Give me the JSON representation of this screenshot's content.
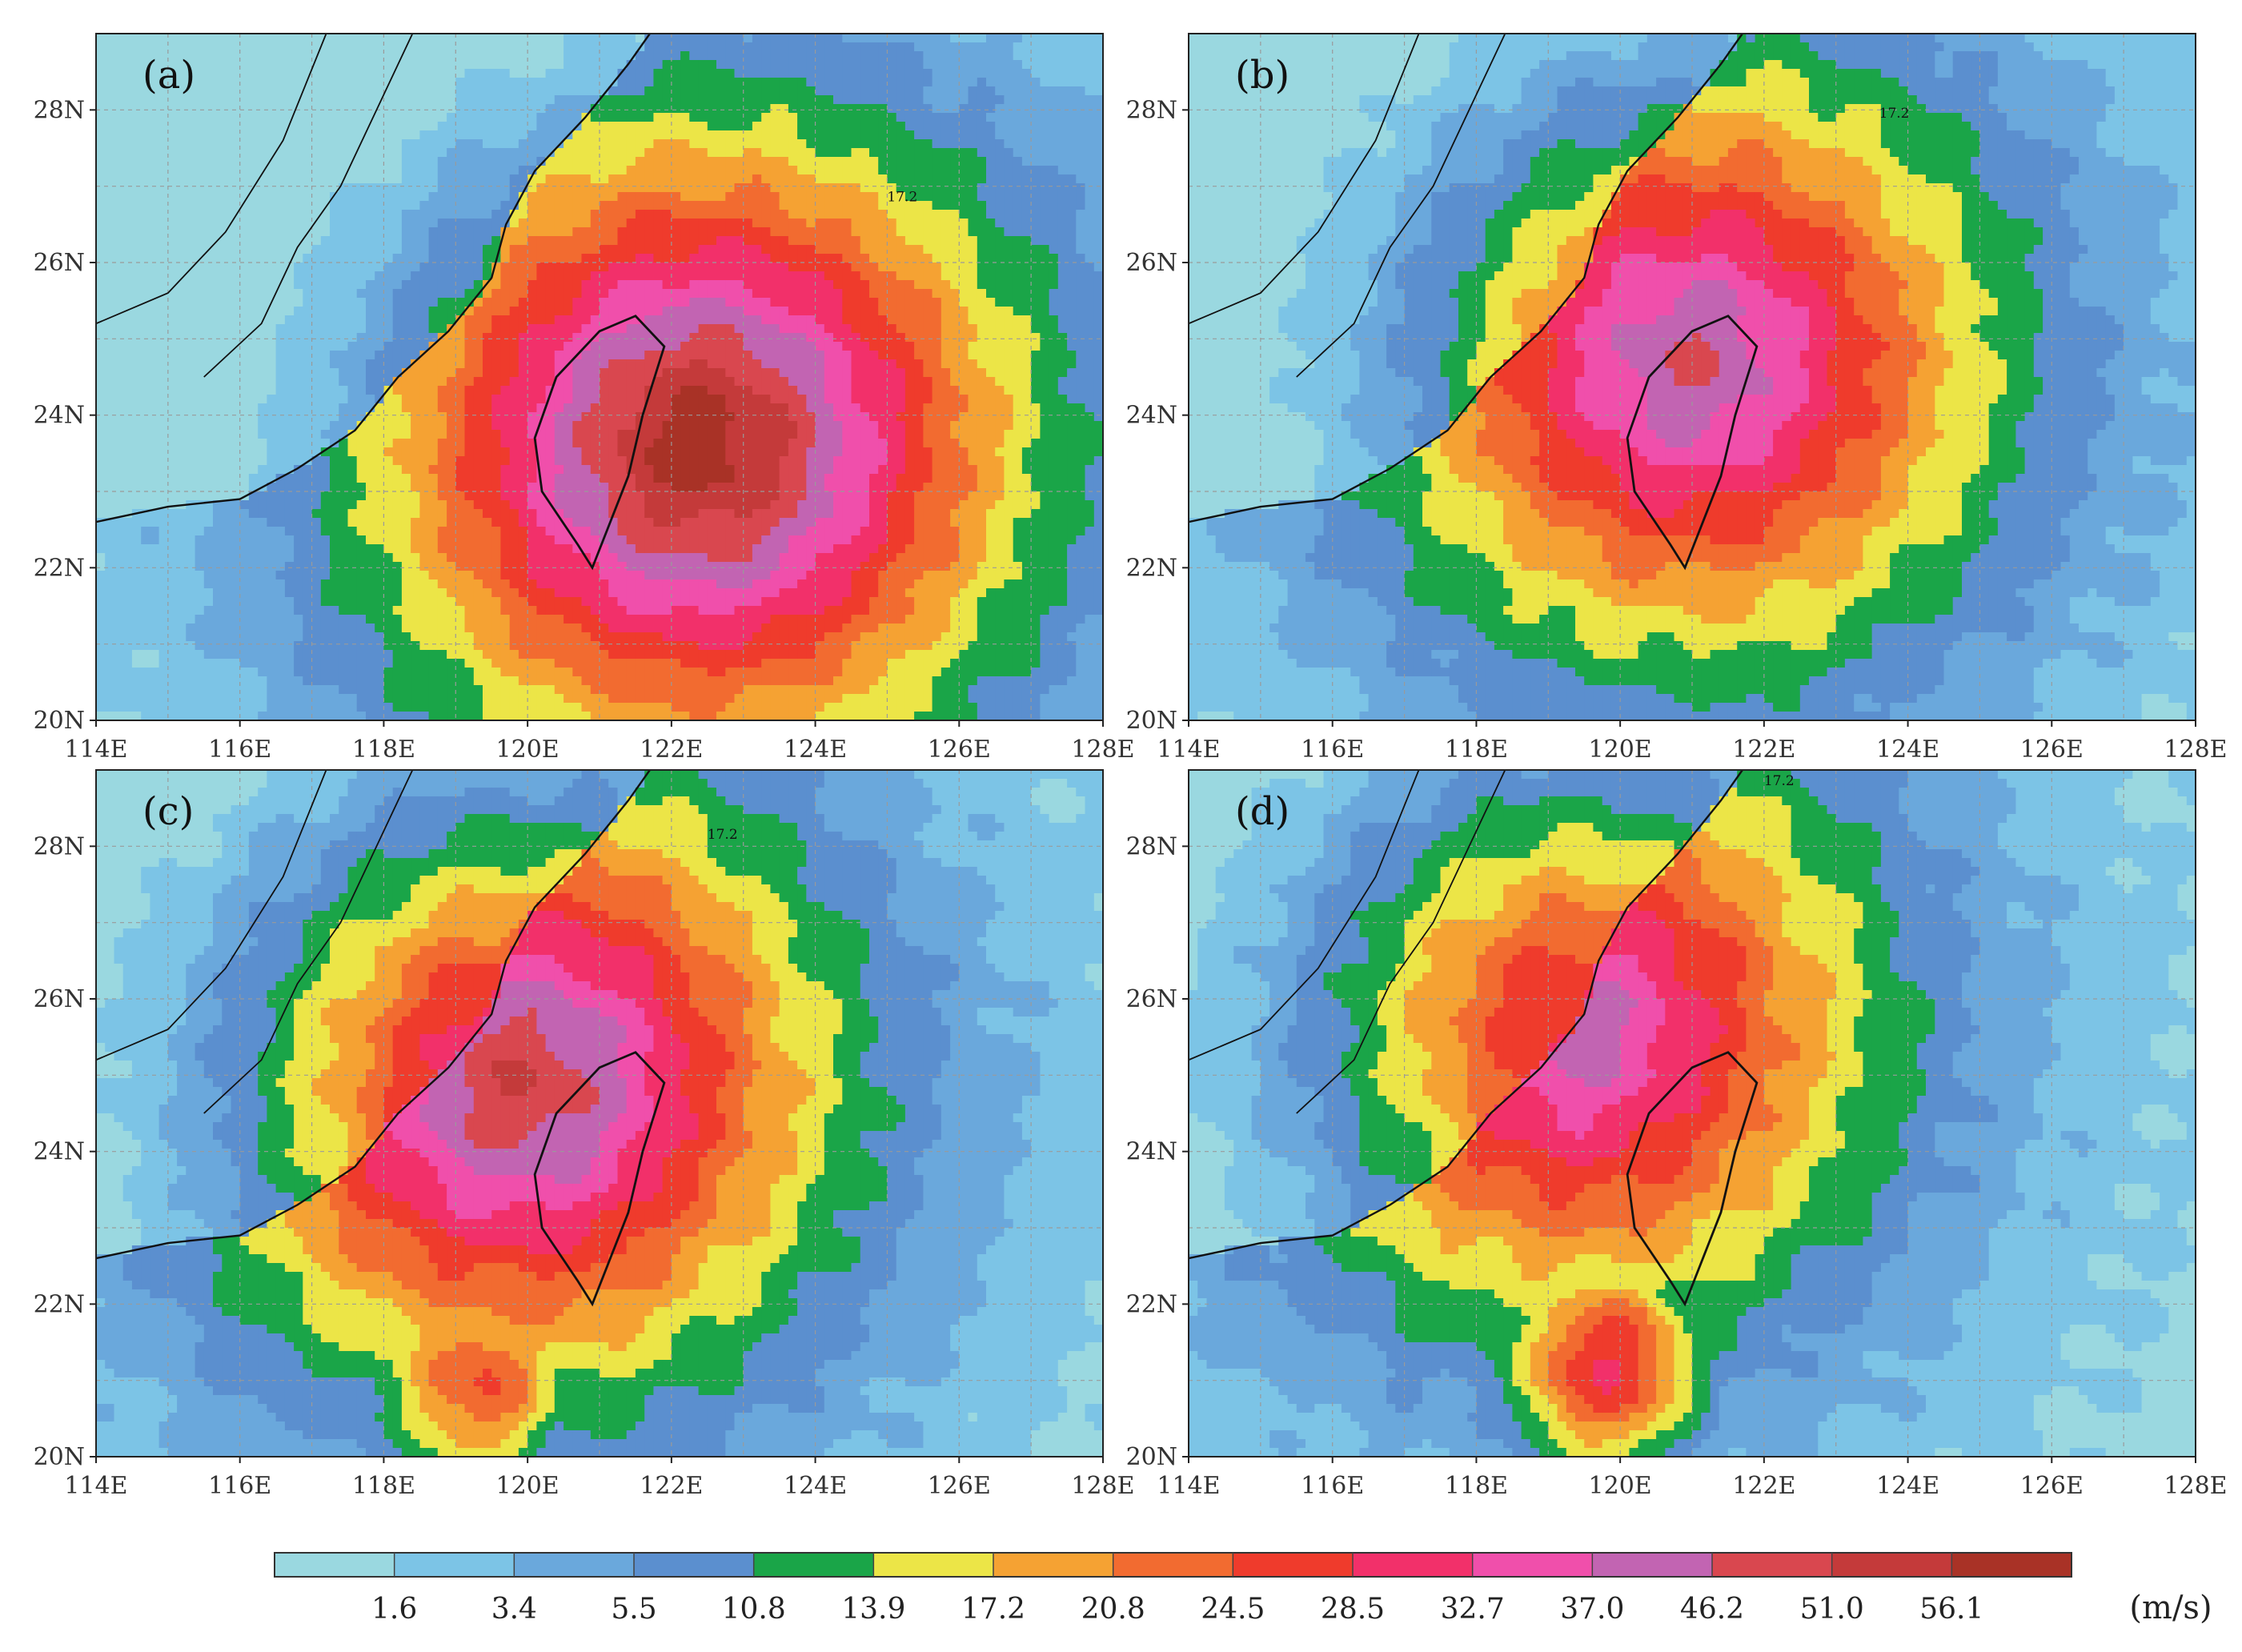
{
  "figure": {
    "panels": [
      {
        "label": "(a)",
        "center_lon": 122.4,
        "center_lat": 23.6,
        "core": 1.0,
        "landward": [
          {
            "lon": 120.2,
            "lat": 25.3,
            "level": 5
          }
        ],
        "contour_label": "17.2"
      },
      {
        "label": "(b)",
        "center_lon": 121.0,
        "center_lat": 24.7,
        "core": 0.82,
        "landward": [
          {
            "lon": 119.6,
            "lat": 26.0,
            "level": 6
          }
        ],
        "contour_label": "17.2"
      },
      {
        "label": "(c)",
        "center_lon": 119.9,
        "center_lat": 24.9,
        "core": 0.88,
        "landward": [
          {
            "lon": 119.3,
            "lat": 21.0,
            "level": 8
          },
          {
            "lon": 118.2,
            "lat": 27.2,
            "level": 5
          }
        ],
        "contour_label": "17.2"
      },
      {
        "label": "(d)",
        "center_lon": 119.4,
        "center_lat": 25.6,
        "core": 0.78,
        "landward": [
          {
            "lon": 119.8,
            "lat": 21.2,
            "level": 9
          },
          {
            "lon": 117.0,
            "lat": 27.3,
            "level": 6
          },
          {
            "lon": 116.0,
            "lat": 26.0,
            "level": 5
          }
        ],
        "contour_label": "17.2"
      }
    ],
    "lon_ticks": [
      "114E",
      "116E",
      "118E",
      "120E",
      "122E",
      "124E",
      "126E",
      "128E"
    ],
    "lat_ticks": [
      "20N",
      "22N",
      "24N",
      "26N",
      "28N"
    ],
    "lon_range": [
      114,
      128
    ],
    "lat_range": [
      20,
      29
    ],
    "colorbar": {
      "levels": [
        "1.6",
        "3.4",
        "5.5",
        "10.8",
        "13.9",
        "17.2",
        "20.8",
        "24.5",
        "28.5",
        "32.7",
        "37.0",
        "46.2",
        "51.0",
        "56.1"
      ],
      "colors": [
        "#9ad8e0",
        "#7cc4e6",
        "#6aa8dc",
        "#5b8fcf",
        "#1aa548",
        "#ece547",
        "#f5a233",
        "#f26b30",
        "#ef3b2c",
        "#f2306a",
        "#f04fab",
        "#c264b2",
        "#d9474f",
        "#c43a3a",
        "#a93226"
      ],
      "unit": "(m/s)"
    }
  }
}
